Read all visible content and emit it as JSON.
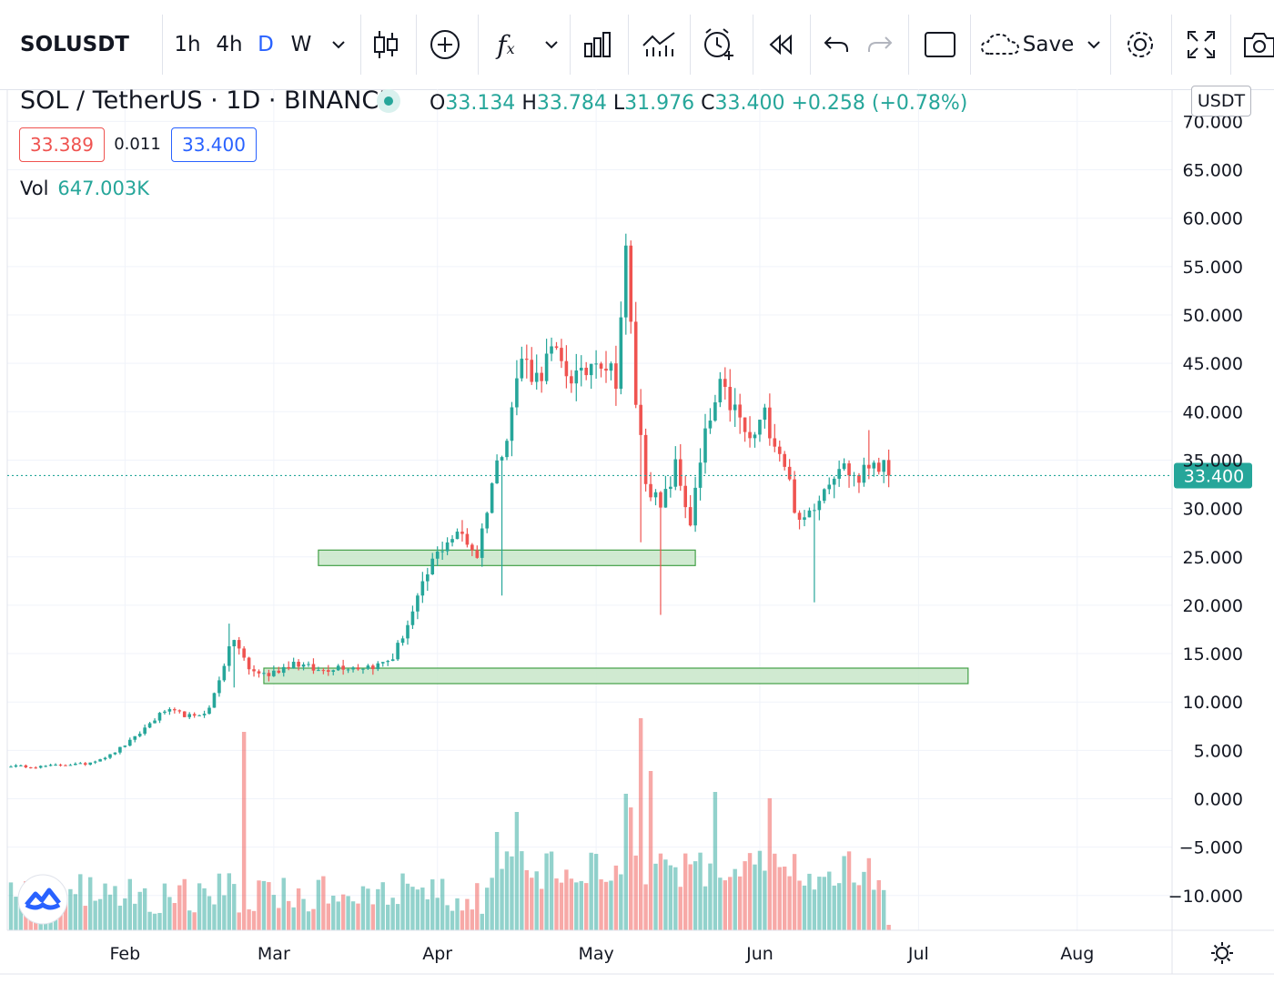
{
  "toolbar": {
    "symbol": "SOLUSDT",
    "intervals": [
      "1h",
      "4h",
      "D",
      "W"
    ],
    "active_interval": "D",
    "save_label": "Save",
    "icons": [
      "candles-icon",
      "add-icon",
      "indicators-icon",
      "chevron-down-icon",
      "compare-icon",
      "templates-icon",
      "alert-icon",
      "replay-icon",
      "undo-icon",
      "redo-icon",
      "layout-icon",
      "cloud-icon",
      "settings-icon",
      "fullscreen-icon",
      "camera-icon"
    ]
  },
  "legend": {
    "title": "SOL / TetherUS · 1D · BINANCE",
    "o_label": "O",
    "o": "33.134",
    "h_label": "H",
    "h": "33.784",
    "l_label": "L",
    "l": "31.976",
    "c_label": "C",
    "c": "33.400",
    "change": "+0.258 (+0.78%)",
    "bid": "33.389",
    "spread": "0.011",
    "ask": "33.400",
    "vol_label": "Vol",
    "vol_value": "647.003K"
  },
  "currency_badge": "USDT",
  "colors": {
    "up": "#26a69a",
    "down": "#ef5350",
    "zone_fill": "#c8e6c9",
    "zone_stroke": "#43a047",
    "grid": "#f0f3fa"
  },
  "chart_data": {
    "type": "candlestick",
    "symbol": "SOL / TetherUS",
    "interval": "1D",
    "exchange": "BINANCE",
    "ylim": [
      -14,
      72
    ],
    "y_ticks": [
      70,
      65,
      60,
      55,
      50,
      45,
      40,
      35,
      30,
      25,
      20,
      15,
      10,
      5,
      0,
      -5,
      -10
    ],
    "y_tick_labels": [
      "70.000",
      "65.000",
      "60.000",
      "55.000",
      "50.000",
      "45.000",
      "40.000",
      "35.000",
      "30.000",
      "25.000",
      "20.000",
      "15.000",
      "10.000",
      "5.000",
      "0.000",
      "−5.000",
      "−10.000"
    ],
    "x_ticks": [
      "Feb",
      "Mar",
      "Apr",
      "May",
      "Jun",
      "Jul",
      "Aug"
    ],
    "last_price": 33.4,
    "last_price_label": "33.400",
    "grid": true,
    "zones": [
      {
        "y_low": 24.1,
        "y_high": 25.7,
        "from_day": 62,
        "to_day": 138
      },
      {
        "y_low": 11.9,
        "y_high": 13.5,
        "from_day": 51,
        "to_day": 193
      }
    ],
    "key_closes": [
      [
        0,
        3.4
      ],
      [
        5,
        3.3
      ],
      [
        10,
        3.5
      ],
      [
        15,
        3.6
      ],
      [
        20,
        4.5
      ],
      [
        25,
        6.3
      ],
      [
        28,
        7.8
      ],
      [
        31,
        9.1
      ],
      [
        34,
        8.8
      ],
      [
        37,
        8.4
      ],
      [
        40,
        9.3
      ],
      [
        43,
        14.0
      ],
      [
        45,
        16.6
      ],
      [
        48,
        13.3
      ],
      [
        52,
        12.8
      ],
      [
        57,
        14.1
      ],
      [
        62,
        13.2
      ],
      [
        66,
        13.7
      ],
      [
        70,
        13.6
      ],
      [
        74,
        13.8
      ],
      [
        77,
        14.6
      ],
      [
        81,
        19.2
      ],
      [
        85,
        24.5
      ],
      [
        88,
        26.8
      ],
      [
        91,
        27.3
      ],
      [
        94,
        25.2
      ],
      [
        97,
        32.7
      ],
      [
        100,
        38.1
      ],
      [
        103,
        45.6
      ],
      [
        106,
        43.5
      ],
      [
        109,
        46.1
      ],
      [
        112,
        44.1
      ],
      [
        115,
        43.3
      ],
      [
        118,
        46.1
      ],
      [
        122,
        43.6
      ],
      [
        124,
        56.2
      ],
      [
        126,
        41.1
      ],
      [
        128,
        33.2
      ],
      [
        131,
        29.8
      ],
      [
        134,
        34.3
      ],
      [
        137,
        28.6
      ],
      [
        140,
        37.4
      ],
      [
        143,
        42.3
      ],
      [
        146,
        40.1
      ],
      [
        149,
        36.8
      ],
      [
        152,
        39.6
      ],
      [
        156,
        34.8
      ],
      [
        159,
        28.1
      ],
      [
        161,
        29.7
      ],
      [
        164,
        32.4
      ],
      [
        167,
        34.6
      ],
      [
        171,
        33.0
      ],
      [
        174,
        35.2
      ],
      [
        177,
        33.4
      ]
    ]
  }
}
